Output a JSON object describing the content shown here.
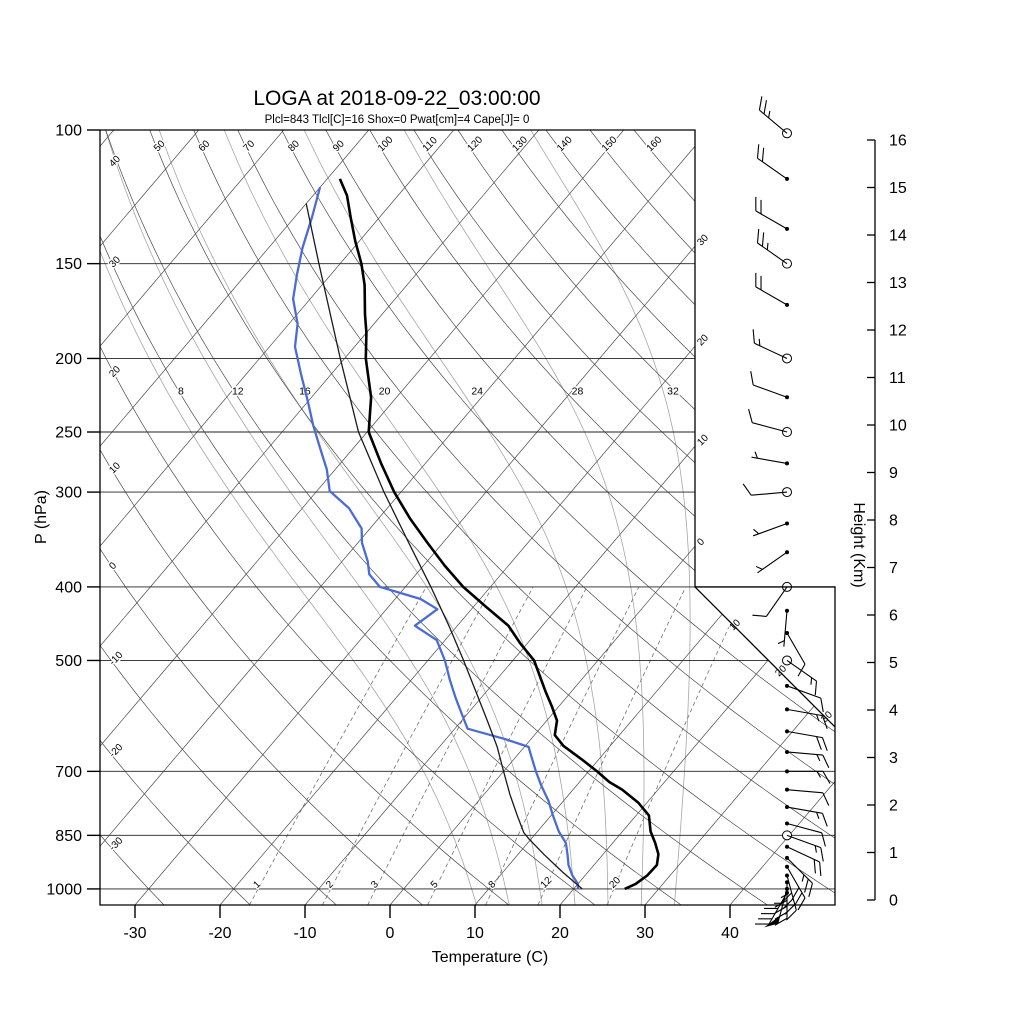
{
  "title": "LOGA at 2018-09-22_03:00:00",
  "subtitle": "Plcl=843 Tlcl[C]=16 Shox=0 Pwat[cm]=4 Cape[J]= 0",
  "station": "LOGA",
  "datetime": "2018-09-22_03:00:00",
  "indices": {
    "Plcl": 843,
    "Tlcl_C": 16,
    "Shox": 0,
    "Pwat_cm": 4,
    "Cape_J": 0
  },
  "colors": {
    "temperature": "#000000",
    "dewpoint": "#4a6cd4",
    "parcel": "#1a1a1a",
    "subtitle": "#bf5b1e",
    "grid": "#4a4a4a",
    "pressure_line": "#222222",
    "moist_adiabat": "#a6a6a6",
    "mixing_ratio": "#707070",
    "barbs": "#000000"
  },
  "axes": {
    "pressure": {
      "label": "P (hPa)",
      "tick_labels": [
        "100",
        "150",
        "200",
        "250",
        "300",
        "400",
        "500",
        "700",
        "850",
        "1000"
      ],
      "tick_values": [
        100,
        150,
        200,
        250,
        300,
        400,
        500,
        700,
        850,
        1000
      ],
      "range": [
        100,
        1050
      ]
    },
    "temperature": {
      "label": "Temperature (C)",
      "tick_labels": [
        "-30",
        "-20",
        "-10",
        "0",
        "10",
        "20",
        "30",
        "40"
      ],
      "tick_values": [
        -30,
        -20,
        -10,
        0,
        10,
        20,
        30,
        40
      ]
    },
    "height": {
      "label": "Height (Km)",
      "tick_labels": [
        "0",
        "1",
        "2",
        "3",
        "4",
        "5",
        "6",
        "7",
        "8",
        "9",
        "10",
        "11",
        "12",
        "13",
        "14",
        "15",
        "16"
      ]
    }
  },
  "background": {
    "dry_adiabat_labels_left": [
      "-30",
      "-20",
      "-10",
      "0",
      "10",
      "20",
      "30",
      "40"
    ],
    "dry_adiabat_left_values": [
      -30,
      -20,
      -10,
      0,
      10,
      20,
      30,
      40
    ],
    "dry_adiabat_labels_top": [
      "50",
      "60",
      "70",
      "80",
      "90",
      "100",
      "110",
      "120",
      "130",
      "140",
      "150",
      "160"
    ],
    "dry_adiabat_top_values": [
      50,
      60,
      70,
      80,
      90,
      100,
      110,
      120,
      130,
      140,
      150,
      160
    ],
    "moist_adiabat_labels": [
      "8",
      "12",
      "16",
      "20",
      "24",
      "28",
      "32"
    ],
    "moist_adiabat_values": [
      8,
      12,
      16,
      20,
      24,
      28,
      32
    ],
    "mixing_ratio_labels": [
      "1",
      "2",
      "3",
      "5",
      "8",
      "12",
      "20"
    ],
    "mixing_ratio_values": [
      1,
      2,
      3,
      5,
      8,
      12,
      20
    ],
    "isotherm_labels_right": [
      "30",
      "20",
      "10",
      "0",
      "10",
      "20",
      "30"
    ],
    "isotherm_right_values": [
      -30,
      -20,
      -10,
      0,
      10,
      20,
      30
    ]
  },
  "chart_data": {
    "type": "skewt-logp-sounding",
    "pressure_unit": "hPa",
    "temperature_unit": "C",
    "isotherms_C": {
      "start": -110,
      "end": 40,
      "step": 10
    },
    "dry_adiabats_C": {
      "start": -30,
      "end": 160,
      "step": 10
    },
    "moist_adiabats_C": [
      8,
      12,
      16,
      20,
      24,
      28,
      32
    ],
    "mixing_ratios_g_kg": [
      1,
      2,
      3,
      5,
      8,
      12,
      20
    ],
    "pressure_lines_hPa": [
      150,
      200,
      250,
      300,
      400,
      500,
      700,
      850,
      1000
    ],
    "temperature_profile": [
      [
        1000,
        26.0
      ],
      [
        985,
        26.8
      ],
      [
        960,
        27.3
      ],
      [
        930,
        27.4
      ],
      [
        900,
        26.5
      ],
      [
        870,
        25.0
      ],
      [
        840,
        23.3
      ],
      [
        800,
        21.5
      ],
      [
        770,
        19.0
      ],
      [
        740,
        15.8
      ],
      [
        723,
        13.5
      ],
      [
        700,
        11.0
      ],
      [
        675,
        8.0
      ],
      [
        648,
        4.5
      ],
      [
        627,
        2.4
      ],
      [
        600,
        1.2
      ],
      [
        575,
        -0.8
      ],
      [
        550,
        -3.0
      ],
      [
        525,
        -5.2
      ],
      [
        500,
        -7.5
      ],
      [
        475,
        -10.8
      ],
      [
        450,
        -14.0
      ],
      [
        425,
        -18.5
      ],
      [
        400,
        -23.2
      ],
      [
        375,
        -27.5
      ],
      [
        350,
        -31.8
      ],
      [
        325,
        -36.3
      ],
      [
        300,
        -40.8
      ],
      [
        275,
        -45.2
      ],
      [
        250,
        -49.8
      ],
      [
        225,
        -53.0
      ],
      [
        200,
        -57.5
      ],
      [
        185,
        -60.0
      ],
      [
        175,
        -62.0
      ],
      [
        160,
        -65.0
      ],
      [
        150,
        -67.5
      ],
      [
        140,
        -70.5
      ],
      [
        130,
        -73.5
      ],
      [
        122,
        -76.0
      ],
      [
        116,
        -78.5
      ]
    ],
    "dewpoint_profile": [
      [
        1000,
        20.5
      ],
      [
        985,
        20.0
      ],
      [
        960,
        18.5
      ],
      [
        930,
        17.0
      ],
      [
        900,
        15.8
      ],
      [
        870,
        14.5
      ],
      [
        840,
        12.5
      ],
      [
        800,
        10.2
      ],
      [
        765,
        8.2
      ],
      [
        730,
        5.8
      ],
      [
        700,
        3.8
      ],
      [
        668,
        1.7
      ],
      [
        650,
        0.5
      ],
      [
        635,
        -3.0
      ],
      [
        615,
        -8.5
      ],
      [
        590,
        -10.5
      ],
      [
        560,
        -13.0
      ],
      [
        530,
        -15.5
      ],
      [
        500,
        -18.0
      ],
      [
        470,
        -21.0
      ],
      [
        450,
        -25.0
      ],
      [
        428,
        -24.0
      ],
      [
        415,
        -27.0
      ],
      [
        400,
        -33.0
      ],
      [
        385,
        -35.5
      ],
      [
        370,
        -37.0
      ],
      [
        350,
        -39.5
      ],
      [
        335,
        -41.0
      ],
      [
        315,
        -44.5
      ],
      [
        299,
        -48.5
      ],
      [
        280,
        -51.0
      ],
      [
        262,
        -54.0
      ],
      [
        245,
        -57.0
      ],
      [
        228,
        -60.0
      ],
      [
        210,
        -63.5
      ],
      [
        193,
        -67.0
      ],
      [
        180,
        -69.0
      ],
      [
        167,
        -72.0
      ],
      [
        155,
        -74.0
      ],
      [
        143,
        -76.0
      ],
      [
        130,
        -78.0
      ],
      [
        119,
        -80.0
      ]
    ],
    "parcel_profile": [
      [
        1000,
        21.0
      ],
      [
        950,
        17.0
      ],
      [
        900,
        13.0
      ],
      [
        860,
        9.8
      ],
      [
        843,
        8.5
      ],
      [
        800,
        6.0
      ],
      [
        750,
        3.0
      ],
      [
        700,
        0.0
      ],
      [
        650,
        -3.2
      ],
      [
        600,
        -7.0
      ],
      [
        550,
        -11.2
      ],
      [
        500,
        -15.8
      ],
      [
        450,
        -21.0
      ],
      [
        400,
        -27.0
      ],
      [
        350,
        -34.0
      ],
      [
        300,
        -42.0
      ],
      [
        250,
        -51.0
      ],
      [
        200,
        -60.5
      ],
      [
        150,
        -72.5
      ],
      [
        125,
        -80.0
      ]
    ],
    "wind_barbs": [
      {
        "p": 101,
        "speed_kt": 25,
        "dir_deg": 310
      },
      {
        "p": 116,
        "speed_kt": 20,
        "dir_deg": 305
      },
      {
        "p": 135,
        "speed_kt": 20,
        "dir_deg": 300
      },
      {
        "p": 150,
        "speed_kt": 25,
        "dir_deg": 305
      },
      {
        "p": 170,
        "speed_kt": 20,
        "dir_deg": 300
      },
      {
        "p": 200,
        "speed_kt": 15,
        "dir_deg": 295
      },
      {
        "p": 225,
        "speed_kt": 10,
        "dir_deg": 290
      },
      {
        "p": 250,
        "speed_kt": 10,
        "dir_deg": 285
      },
      {
        "p": 275,
        "speed_kt": 5,
        "dir_deg": 280
      },
      {
        "p": 300,
        "speed_kt": 10,
        "dir_deg": 265
      },
      {
        "p": 330,
        "speed_kt": 5,
        "dir_deg": 250
      },
      {
        "p": 360,
        "speed_kt": 5,
        "dir_deg": 235
      },
      {
        "p": 400,
        "speed_kt": 10,
        "dir_deg": 215
      },
      {
        "p": 430,
        "speed_kt": 5,
        "dir_deg": 185
      },
      {
        "p": 460,
        "speed_kt": 10,
        "dir_deg": 150
      },
      {
        "p": 500,
        "speed_kt": 15,
        "dir_deg": 125
      },
      {
        "p": 540,
        "speed_kt": 10,
        "dir_deg": 110
      },
      {
        "p": 580,
        "speed_kt": 15,
        "dir_deg": 100
      },
      {
        "p": 620,
        "speed_kt": 20,
        "dir_deg": 100
      },
      {
        "p": 660,
        "speed_kt": 15,
        "dir_deg": 95
      },
      {
        "p": 700,
        "speed_kt": 15,
        "dir_deg": 90
      },
      {
        "p": 740,
        "speed_kt": 10,
        "dir_deg": 95
      },
      {
        "p": 780,
        "speed_kt": 15,
        "dir_deg": 100
      },
      {
        "p": 820,
        "speed_kt": 10,
        "dir_deg": 105
      },
      {
        "p": 850,
        "speed_kt": 15,
        "dir_deg": 110
      },
      {
        "p": 880,
        "speed_kt": 20,
        "dir_deg": 115
      },
      {
        "p": 910,
        "speed_kt": 25,
        "dir_deg": 135
      },
      {
        "p": 935,
        "speed_kt": 30,
        "dir_deg": 150
      },
      {
        "p": 960,
        "speed_kt": 40,
        "dir_deg": 165
      },
      {
        "p": 980,
        "speed_kt": 45,
        "dir_deg": 180
      },
      {
        "p": 1000,
        "speed_kt": 50,
        "dir_deg": 195
      },
      {
        "p": 1012,
        "speed_kt": 45,
        "dir_deg": 210
      }
    ],
    "circle_levels_hPa": [
      101,
      150,
      200,
      250,
      300,
      400,
      500,
      850
    ]
  }
}
